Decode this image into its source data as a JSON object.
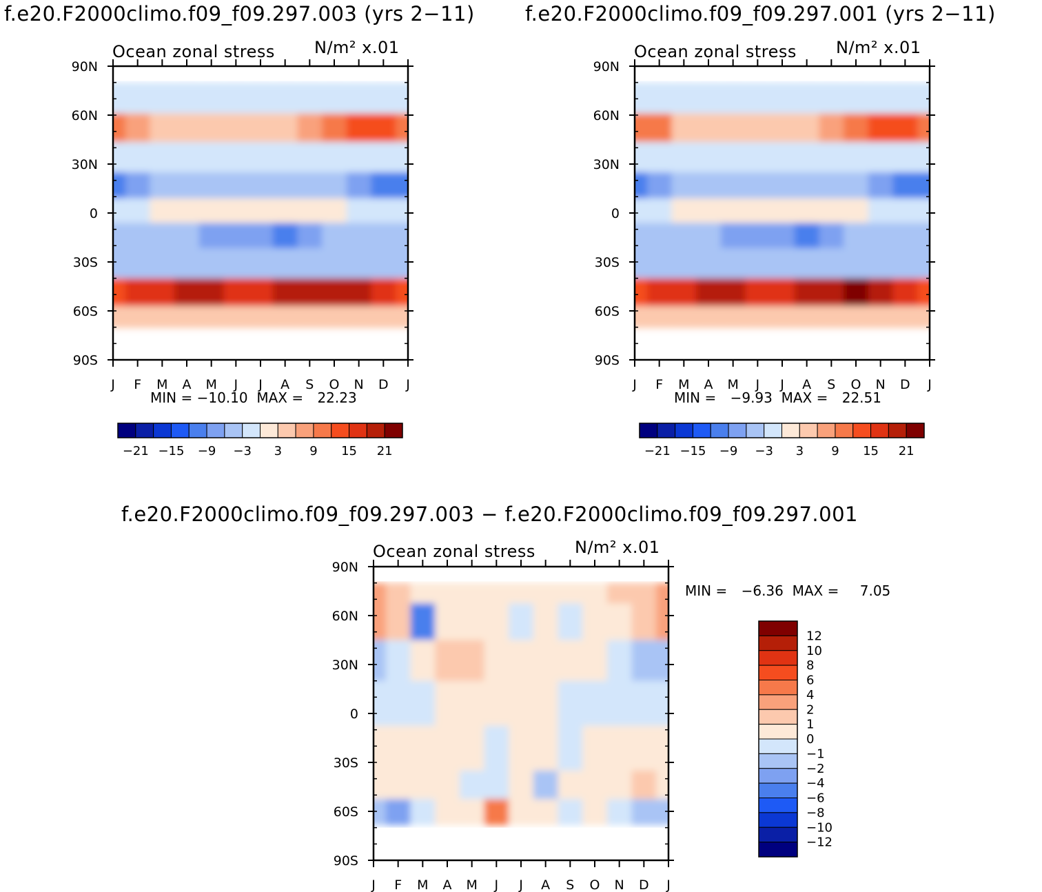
{
  "page": {
    "title_left": "f.e20.F2000climo.f09_f09.297.003 (yrs 2−11)",
    "title_right": "f.e20.F2000climo.f09_f09.297.001 (yrs 2−11)",
    "title_diff": "f.e20.F2000climo.f09_f09.297.003 − f.e20.F2000climo.f09_f09.297.001"
  },
  "chart_data": [
    {
      "type": "heatmap",
      "panel": "left",
      "title": "Ocean zonal stress",
      "units": "N/m² x.01",
      "xlabel": "",
      "ylabel": "",
      "x": [
        "J",
        "F",
        "M",
        "A",
        "M",
        "J",
        "J",
        "A",
        "S",
        "O",
        "N",
        "D",
        "J"
      ],
      "y_ticks": [
        "90N",
        "60N",
        "30N",
        "0",
        "30S",
        "60S",
        "90S"
      ],
      "ylim": [
        -90,
        90
      ],
      "bands": [
        {
          "lat": 70,
          "values": [
            -1,
            -1,
            -1,
            -1,
            -1,
            -1,
            -1,
            -1,
            -1,
            -1,
            -1,
            -1,
            -1
          ]
        },
        {
          "lat": 52,
          "values": [
            10,
            8,
            5,
            4,
            3,
            3,
            4,
            5,
            7,
            10,
            13,
            14,
            10
          ]
        },
        {
          "lat": 35,
          "values": [
            -3,
            -3,
            -3,
            -3,
            -3,
            -3,
            -3,
            -3,
            -3,
            -3,
            -3,
            -3,
            -3
          ]
        },
        {
          "lat": 15,
          "values": [
            -10,
            -7,
            -5,
            -4,
            -4,
            -4,
            -4,
            -4,
            -5,
            -6,
            -8,
            -10,
            -10
          ]
        },
        {
          "lat": 3,
          "values": [
            -1,
            -1,
            0,
            1,
            1,
            2,
            2,
            2,
            1,
            0,
            -1,
            -1,
            -1
          ]
        },
        {
          "lat": -15,
          "values": [
            -4,
            -4,
            -5,
            -6,
            -7,
            -8,
            -9,
            -10,
            -8,
            -6,
            -5,
            -4,
            -4
          ]
        },
        {
          "lat": -28,
          "values": [
            -5,
            -5,
            -5,
            -5,
            -5,
            -5,
            -5,
            -5,
            -5,
            -5,
            -5,
            -5,
            -5
          ]
        },
        {
          "lat": -52,
          "values": [
            14,
            15,
            17,
            18,
            18,
            17,
            17,
            18,
            19,
            20,
            18,
            15,
            14
          ]
        },
        {
          "lat": -62,
          "values": [
            3,
            3,
            4,
            4,
            4,
            4,
            4,
            4,
            4,
            4,
            4,
            3,
            3
          ]
        }
      ],
      "min": "−10.10",
      "max": "22.23",
      "colorbar": {
        "labels": [
          "−21",
          "−15",
          "−9",
          "−3",
          "3",
          "9",
          "15",
          "21"
        ],
        "colors": [
          "#00007f",
          "#0a1fa6",
          "#0b38d4",
          "#1e5af5",
          "#4a7fed",
          "#7ea1f1",
          "#a9c4f5",
          "#d3e6fb",
          "#fde9d8",
          "#fcc9ae",
          "#f9a17b",
          "#f6794a",
          "#f54d1f",
          "#e03313",
          "#b51f08",
          "#7f0000"
        ]
      }
    },
    {
      "type": "heatmap",
      "panel": "right",
      "title": "Ocean zonal stress",
      "units": "N/m² x.01",
      "xlabel": "",
      "ylabel": "",
      "x": [
        "J",
        "F",
        "M",
        "A",
        "M",
        "J",
        "J",
        "A",
        "S",
        "O",
        "N",
        "D",
        "J"
      ],
      "y_ticks": [
        "90N",
        "60N",
        "30N",
        "0",
        "30S",
        "60S",
        "90S"
      ],
      "ylim": [
        -90,
        90
      ],
      "bands": [
        {
          "lat": 70,
          "values": [
            -1,
            -1,
            -1,
            -1,
            -1,
            -1,
            -1,
            -1,
            -1,
            -1,
            -1,
            -1,
            -1
          ]
        },
        {
          "lat": 52,
          "values": [
            10,
            9,
            5,
            4,
            3,
            3,
            4,
            5,
            7,
            10,
            13,
            14,
            10
          ]
        },
        {
          "lat": 35,
          "values": [
            -3,
            -3,
            -3,
            -3,
            -3,
            -3,
            -3,
            -3,
            -3,
            -3,
            -3,
            -3,
            -3
          ]
        },
        {
          "lat": 15,
          "values": [
            -10,
            -7,
            -5,
            -4,
            -4,
            -4,
            -4,
            -4,
            -5,
            -6,
            -8,
            -10,
            -10
          ]
        },
        {
          "lat": 3,
          "values": [
            -1,
            -1,
            0,
            1,
            1,
            2,
            2,
            2,
            1,
            0,
            -1,
            -1,
            -1
          ]
        },
        {
          "lat": -15,
          "values": [
            -4,
            -4,
            -5,
            -6,
            -7,
            -8,
            -9,
            -10,
            -8,
            -6,
            -5,
            -4,
            -4
          ]
        },
        {
          "lat": -28,
          "values": [
            -5,
            -5,
            -5,
            -5,
            -5,
            -5,
            -5,
            -5,
            -5,
            -5,
            -5,
            -5,
            -5
          ]
        },
        {
          "lat": -52,
          "values": [
            14,
            15,
            17,
            19,
            18,
            17,
            17,
            18,
            20,
            21,
            19,
            15,
            14
          ]
        },
        {
          "lat": -62,
          "values": [
            3,
            3,
            4,
            4,
            4,
            4,
            4,
            4,
            4,
            4,
            4,
            3,
            3
          ]
        }
      ],
      "min": "−9.93",
      "max": "22.51",
      "colorbar": {
        "labels": [
          "−21",
          "−15",
          "−9",
          "−3",
          "3",
          "9",
          "15",
          "21"
        ],
        "colors": [
          "#00007f",
          "#0a1fa6",
          "#0b38d4",
          "#1e5af5",
          "#4a7fed",
          "#7ea1f1",
          "#a9c4f5",
          "#d3e6fb",
          "#fde9d8",
          "#fcc9ae",
          "#f9a17b",
          "#f6794a",
          "#f54d1f",
          "#e03313",
          "#b51f08",
          "#7f0000"
        ]
      }
    },
    {
      "type": "heatmap",
      "panel": "diff",
      "title": "Ocean zonal stress",
      "units": "N/m² x.01",
      "xlabel": "",
      "ylabel": "",
      "x": [
        "J",
        "F",
        "M",
        "A",
        "M",
        "J",
        "J",
        "A",
        "S",
        "O",
        "N",
        "D",
        "J"
      ],
      "y_ticks": [
        "90N",
        "60N",
        "30N",
        "0",
        "30S",
        "60S",
        "90S"
      ],
      "ylim": [
        -90,
        90
      ],
      "bands": [
        {
          "lat": 75,
          "values": [
            2,
            1,
            0,
            0,
            0,
            0,
            0,
            0,
            0,
            0,
            1,
            1,
            2
          ]
        },
        {
          "lat": 60,
          "values": [
            3,
            1,
            -6,
            0,
            0,
            0,
            -1,
            0,
            -1,
            0,
            0,
            1,
            3
          ]
        },
        {
          "lat": 30,
          "values": [
            -2,
            -1,
            0,
            1,
            1,
            0,
            0,
            0,
            0,
            0,
            -1,
            -2,
            -2
          ]
        },
        {
          "lat": 10,
          "values": [
            -1,
            -1,
            -1,
            0,
            0,
            0,
            0,
            0,
            -1,
            -1,
            -1,
            -1,
            -1
          ]
        },
        {
          "lat": -25,
          "values": [
            0,
            0,
            0,
            0,
            0,
            -1,
            0,
            0,
            -1,
            0,
            0,
            0,
            0
          ]
        },
        {
          "lat": -45,
          "values": [
            0,
            0,
            0,
            0,
            -1,
            -1,
            0,
            -2,
            0,
            0,
            0,
            1,
            0
          ]
        },
        {
          "lat": -60,
          "values": [
            -2,
            -3,
            -1,
            0,
            0,
            5,
            0,
            0,
            -1,
            0,
            -1,
            -2,
            -2
          ]
        }
      ],
      "min": "−6.36",
      "max": "7.05",
      "colorbar": {
        "labels": [
          "12",
          "10",
          "8",
          "6",
          "4",
          "2",
          "1",
          "0",
          "−1",
          "−2",
          "−4",
          "−6",
          "−8",
          "−10",
          "−12"
        ],
        "colors": [
          "#7f0000",
          "#b51f08",
          "#e03313",
          "#f54d1f",
          "#f6794a",
          "#f9a17b",
          "#fcc9ae",
          "#fde9d8",
          "#d3e6fb",
          "#a9c4f5",
          "#7ea1f1",
          "#4a7fed",
          "#1e5af5",
          "#0b38d4",
          "#0a1fa6",
          "#00007f"
        ]
      }
    }
  ]
}
